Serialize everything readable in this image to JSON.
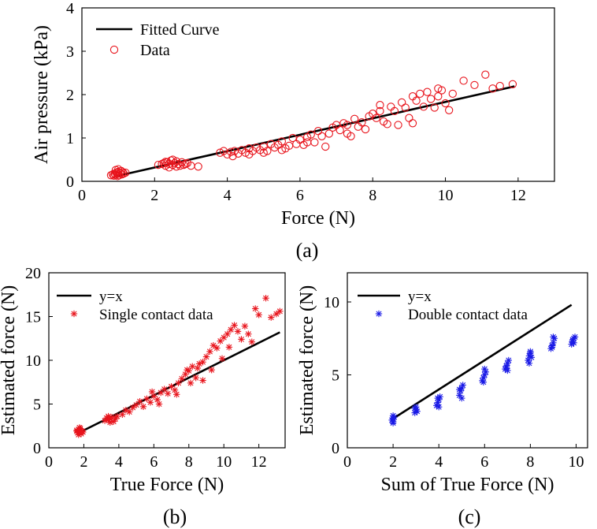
{
  "figure": {
    "caption_a": "(a)",
    "caption_b": "(b)",
    "caption_c": "(c)"
  },
  "colors": {
    "fit": "#000000",
    "data_a": "#e8141c",
    "data_b": "#e8141c",
    "data_c": "#1a1ae6"
  },
  "chart_data": [
    {
      "id": "a",
      "type": "scatter",
      "title": "",
      "xlabel": "Force (N)",
      "ylabel": "Air pressure (kPa)",
      "xlim": [
        0,
        13
      ],
      "ylim": [
        0,
        4
      ],
      "xticks": [
        0,
        2,
        4,
        6,
        8,
        10,
        12
      ],
      "yticks": [
        0,
        1,
        2,
        3,
        4
      ],
      "legend_position": "top-left",
      "marker": "circle",
      "series": [
        {
          "name": "Fitted Curve",
          "kind": "line",
          "x": [
            0.95,
            11.9
          ],
          "y": [
            0.12,
            2.19
          ]
        },
        {
          "name": "Data",
          "kind": "scatter",
          "points": [
            [
              0.8,
              0.14
            ],
            [
              0.85,
              0.16
            ],
            [
              0.88,
              0.13
            ],
            [
              0.9,
              0.18
            ],
            [
              0.92,
              0.15
            ],
            [
              0.95,
              0.2
            ],
            [
              0.97,
              0.17
            ],
            [
              1.0,
              0.22
            ],
            [
              1.02,
              0.14
            ],
            [
              1.05,
              0.19
            ],
            [
              1.08,
              0.24
            ],
            [
              1.1,
              0.16
            ],
            [
              1.12,
              0.21
            ],
            [
              0.93,
              0.26
            ],
            [
              1.0,
              0.28
            ],
            [
              1.15,
              0.18
            ],
            [
              1.2,
              0.2
            ],
            [
              0.98,
              0.12
            ],
            [
              2.1,
              0.38
            ],
            [
              2.2,
              0.4
            ],
            [
              2.25,
              0.42
            ],
            [
              2.3,
              0.36
            ],
            [
              2.35,
              0.44
            ],
            [
              2.4,
              0.4
            ],
            [
              2.45,
              0.48
            ],
            [
              2.5,
              0.38
            ],
            [
              2.55,
              0.42
            ],
            [
              2.6,
              0.46
            ],
            [
              2.65,
              0.4
            ],
            [
              2.7,
              0.36
            ],
            [
              2.75,
              0.44
            ],
            [
              2.8,
              0.38
            ],
            [
              2.9,
              0.42
            ],
            [
              3.0,
              0.36
            ],
            [
              2.4,
              0.32
            ],
            [
              2.5,
              0.5
            ],
            [
              2.6,
              0.34
            ],
            [
              3.2,
              0.34
            ],
            [
              2.85,
              0.4
            ],
            [
              2.3,
              0.45
            ],
            [
              3.8,
              0.66
            ],
            [
              3.9,
              0.7
            ],
            [
              4.0,
              0.62
            ],
            [
              4.1,
              0.68
            ],
            [
              4.15,
              0.58
            ],
            [
              4.2,
              0.7
            ],
            [
              4.3,
              0.64
            ],
            [
              4.4,
              0.72
            ],
            [
              4.5,
              0.66
            ],
            [
              4.6,
              0.76
            ],
            [
              4.7,
              0.7
            ],
            [
              4.8,
              0.78
            ],
            [
              4.9,
              0.72
            ],
            [
              5.0,
              0.8
            ],
            [
              5.1,
              0.7
            ],
            [
              5.2,
              0.86
            ],
            [
              5.3,
              0.78
            ],
            [
              5.4,
              0.84
            ],
            [
              5.5,
              0.92
            ],
            [
              5.6,
              0.76
            ],
            [
              5.7,
              0.82
            ],
            [
              5.8,
              1.0
            ],
            [
              5.9,
              0.86
            ],
            [
              6.0,
              0.96
            ],
            [
              6.1,
              0.84
            ],
            [
              6.2,
              1.02
            ],
            [
              6.3,
              1.08
            ],
            [
              6.4,
              0.9
            ],
            [
              6.5,
              1.16
            ],
            [
              6.6,
              1.04
            ],
            [
              6.7,
              0.8
            ],
            [
              6.8,
              1.1
            ],
            [
              6.9,
              1.24
            ],
            [
              7.0,
              1.3
            ],
            [
              7.1,
              1.18
            ],
            [
              7.2,
              1.34
            ],
            [
              7.3,
              1.1
            ],
            [
              7.4,
              1.04
            ],
            [
              7.5,
              1.44
            ],
            [
              7.6,
              1.26
            ],
            [
              7.7,
              1.36
            ],
            [
              7.8,
              1.2
            ],
            [
              7.9,
              1.5
            ],
            [
              8.0,
              1.56
            ],
            [
              8.1,
              1.46
            ],
            [
              8.2,
              1.62
            ],
            [
              8.3,
              1.38
            ],
            [
              8.4,
              1.32
            ],
            [
              8.5,
              1.72
            ],
            [
              8.6,
              1.62
            ],
            [
              8.7,
              1.3
            ],
            [
              8.8,
              1.82
            ],
            [
              8.9,
              1.7
            ],
            [
              9.0,
              1.46
            ],
            [
              9.1,
              1.96
            ],
            [
              9.2,
              1.86
            ],
            [
              9.3,
              2.02
            ],
            [
              9.4,
              1.72
            ],
            [
              9.5,
              2.06
            ],
            [
              9.6,
              1.9
            ],
            [
              9.7,
              1.7
            ],
            [
              9.8,
              1.96
            ],
            [
              9.9,
              2.1
            ],
            [
              10.0,
              1.8
            ],
            [
              10.1,
              1.64
            ],
            [
              10.2,
              2.02
            ],
            [
              10.5,
              2.32
            ],
            [
              10.8,
              2.22
            ],
            [
              11.1,
              2.46
            ],
            [
              11.3,
              2.14
            ],
            [
              11.5,
              2.2
            ],
            [
              11.85,
              2.24
            ],
            [
              4.6,
              0.62
            ],
            [
              5.0,
              0.66
            ],
            [
              5.5,
              0.72
            ],
            [
              6.2,
              0.9
            ],
            [
              7.3,
              1.3
            ],
            [
              8.2,
              1.76
            ],
            [
              9.1,
              1.34
            ],
            [
              9.8,
              2.14
            ]
          ]
        }
      ],
      "legend": [
        "Fitted Curve",
        "Data"
      ]
    },
    {
      "id": "b",
      "type": "scatter",
      "title": "",
      "xlabel": "True Force (N)",
      "ylabel": "Estimated force (N)",
      "xlim": [
        0,
        13.5
      ],
      "ylim": [
        0,
        20
      ],
      "xticks": [
        0,
        2,
        4,
        6,
        8,
        10,
        12
      ],
      "yticks": [
        0,
        5,
        10,
        15,
        20
      ],
      "legend_position": "top-left",
      "marker": "asterisk",
      "series": [
        {
          "name": "y=x",
          "kind": "line",
          "x": [
            1.8,
            13.2
          ],
          "y": [
            1.8,
            13.2
          ]
        },
        {
          "name": "Single contact data",
          "kind": "scatter",
          "points": [
            [
              1.6,
              1.9
            ],
            [
              1.65,
              1.7
            ],
            [
              1.7,
              2.1
            ],
            [
              1.75,
              1.8
            ],
            [
              1.8,
              2.0
            ],
            [
              1.85,
              1.6
            ],
            [
              1.9,
              1.9
            ],
            [
              1.7,
              1.5
            ],
            [
              1.8,
              2.2
            ],
            [
              1.95,
              1.8
            ],
            [
              1.6,
              2.0
            ],
            [
              1.75,
              2.3
            ],
            [
              3.2,
              3.1
            ],
            [
              3.3,
              3.4
            ],
            [
              3.4,
              3.2
            ],
            [
              3.5,
              3.3
            ],
            [
              3.6,
              3.5
            ],
            [
              3.7,
              3.0
            ],
            [
              3.8,
              3.3
            ],
            [
              3.9,
              3.6
            ],
            [
              3.5,
              2.9
            ],
            [
              3.4,
              3.6
            ],
            [
              4.2,
              3.8
            ],
            [
              4.4,
              4.3
            ],
            [
              4.6,
              4.1
            ],
            [
              4.8,
              4.6
            ],
            [
              5.0,
              4.9
            ],
            [
              5.2,
              5.3
            ],
            [
              5.4,
              4.7
            ],
            [
              5.6,
              5.6
            ],
            [
              5.8,
              5.2
            ],
            [
              6.0,
              5.9
            ],
            [
              6.2,
              5.5
            ],
            [
              6.4,
              6.3
            ],
            [
              6.6,
              6.7
            ],
            [
              6.8,
              6.2
            ],
            [
              7.0,
              7.0
            ],
            [
              7.2,
              6.6
            ],
            [
              7.4,
              7.4
            ],
            [
              7.6,
              7.9
            ],
            [
              7.8,
              8.4
            ],
            [
              8.0,
              8.8
            ],
            [
              8.2,
              9.3
            ],
            [
              8.4,
              8.0
            ],
            [
              8.6,
              9.6
            ],
            [
              8.8,
              9.8
            ],
            [
              9.0,
              10.4
            ],
            [
              9.2,
              11.0
            ],
            [
              9.4,
              11.7
            ],
            [
              9.6,
              11.4
            ],
            [
              9.8,
              12.2
            ],
            [
              10.0,
              12.6
            ],
            [
              10.2,
              13.0
            ],
            [
              10.4,
              13.5
            ],
            [
              10.6,
              14.0
            ],
            [
              10.8,
              13.3
            ],
            [
              11.0,
              12.4
            ],
            [
              11.2,
              13.9
            ],
            [
              11.4,
              13.0
            ],
            [
              11.6,
              12.1
            ],
            [
              11.8,
              15.9
            ],
            [
              12.0,
              15.2
            ],
            [
              12.4,
              17.1
            ],
            [
              12.7,
              14.9
            ],
            [
              13.0,
              15.3
            ],
            [
              13.2,
              15.6
            ],
            [
              6.3,
              5.0
            ],
            [
              7.3,
              6.1
            ],
            [
              8.1,
              7.4
            ],
            [
              8.8,
              7.7
            ],
            [
              9.3,
              8.9
            ],
            [
              9.9,
              10.2
            ],
            [
              10.3,
              11.5
            ],
            [
              8.5,
              9.1
            ],
            [
              7.9,
              8.9
            ],
            [
              5.9,
              6.4
            ]
          ]
        }
      ],
      "legend": [
        "y=x",
        "Single contact data"
      ]
    },
    {
      "id": "c",
      "type": "scatter",
      "title": "",
      "xlabel": "Sum of True Force (N)",
      "ylabel": "Estimated force (N)",
      "xlim": [
        0,
        10.5
      ],
      "ylim": [
        0,
        12
      ],
      "xticks": [
        0,
        2,
        4,
        6,
        8,
        10
      ],
      "yticks": [
        0,
        5,
        10
      ],
      "legend_position": "top-left",
      "marker": "asterisk",
      "series": [
        {
          "name": "y=x",
          "kind": "line",
          "x": [
            2.0,
            9.8
          ],
          "y": [
            2.0,
            9.8
          ]
        },
        {
          "name": "Double contact data",
          "kind": "scatter",
          "points": [
            [
              2.0,
              1.8
            ],
            [
              2.0,
              2.0
            ],
            [
              2.0,
              2.2
            ],
            [
              1.95,
              1.9
            ],
            [
              2.05,
              2.1
            ],
            [
              2.0,
              1.7
            ],
            [
              2.95,
              2.4
            ],
            [
              3.0,
              2.6
            ],
            [
              3.0,
              2.8
            ],
            [
              3.05,
              2.5
            ],
            [
              2.95,
              2.7
            ],
            [
              3.9,
              2.9
            ],
            [
              3.95,
              3.1
            ],
            [
              4.0,
              3.3
            ],
            [
              4.05,
              3.5
            ],
            [
              3.95,
              3.4
            ],
            [
              4.0,
              2.8
            ],
            [
              4.9,
              3.6
            ],
            [
              4.95,
              3.9
            ],
            [
              5.0,
              4.1
            ],
            [
              5.05,
              4.3
            ],
            [
              4.9,
              4.0
            ],
            [
              5.0,
              3.4
            ],
            [
              5.9,
              4.6
            ],
            [
              5.95,
              4.8
            ],
            [
              6.0,
              5.0
            ],
            [
              6.05,
              5.2
            ],
            [
              5.95,
              4.5
            ],
            [
              6.0,
              5.4
            ],
            [
              6.9,
              5.4
            ],
            [
              6.95,
              5.6
            ],
            [
              7.0,
              5.8
            ],
            [
              7.05,
              6.0
            ],
            [
              6.95,
              5.5
            ],
            [
              7.0,
              5.3
            ],
            [
              7.9,
              6.0
            ],
            [
              7.95,
              6.3
            ],
            [
              8.0,
              6.5
            ],
            [
              8.05,
              6.2
            ],
            [
              7.95,
              5.8
            ],
            [
              8.0,
              6.6
            ],
            [
              8.9,
              6.8
            ],
            [
              8.95,
              7.0
            ],
            [
              9.0,
              7.2
            ],
            [
              9.05,
              7.5
            ],
            [
              8.95,
              6.9
            ],
            [
              9.0,
              7.6
            ],
            [
              9.8,
              7.1
            ],
            [
              9.85,
              7.3
            ],
            [
              9.9,
              7.5
            ],
            [
              9.95,
              7.6
            ],
            [
              9.85,
              7.4
            ],
            [
              9.9,
              7.2
            ]
          ]
        }
      ],
      "legend": [
        "y=x",
        "Double contact data"
      ]
    }
  ]
}
